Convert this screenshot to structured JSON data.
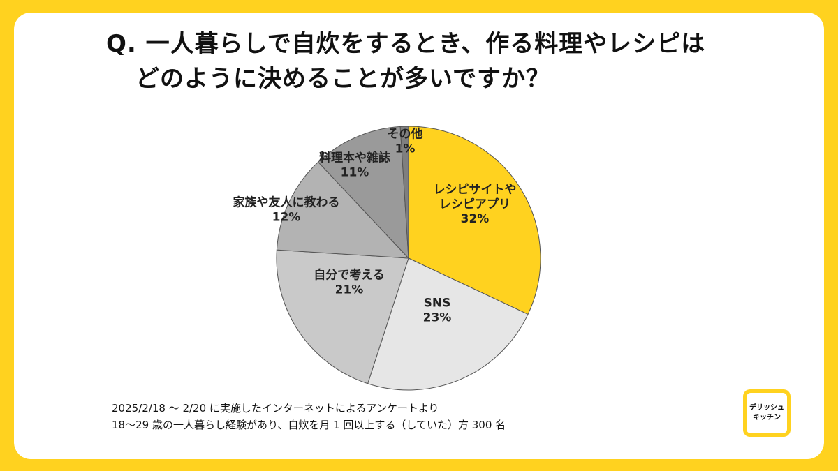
{
  "title": {
    "line1": "Q. 一人暮らしで自炊をするとき、作る料理やレシピは",
    "line2": "どのように決めることが多いですか？"
  },
  "chart_data": {
    "type": "pie",
    "title": "Q. 一人暮らしで自炊をするとき、作る料理やレシピは どのように決めることが多いですか？",
    "slices": [
      {
        "label": "レシピサイトや\nレシピアプリ",
        "value": 32,
        "pct_label": "32%",
        "color": "#FFD21F"
      },
      {
        "label": "SNS",
        "value": 23,
        "pct_label": "23%",
        "color": "#E6E6E6"
      },
      {
        "label": "自分で考える",
        "value": 21,
        "pct_label": "21%",
        "color": "#C9C9C9"
      },
      {
        "label": "家族や友人に教わる",
        "value": 12,
        "pct_label": "12%",
        "color": "#B3B3B3"
      },
      {
        "label": "料理本や雑誌",
        "value": 11,
        "pct_label": "11%",
        "color": "#9A9A9A"
      },
      {
        "label": "その他",
        "value": 1,
        "pct_label": "1%",
        "color": "#7F7F7F"
      }
    ],
    "start": "12 o'clock",
    "direction": "clockwise"
  },
  "notes": {
    "line1": "2025/2/18 〜 2/20 に実施したインターネットによるアンケートより",
    "line2": "18〜29 歳の一人暮らし経験があり、自炊を月 1 回以上する（していた）方 300 名"
  },
  "logo": {
    "line1": "デリッシュ",
    "line2": "キッチン"
  }
}
